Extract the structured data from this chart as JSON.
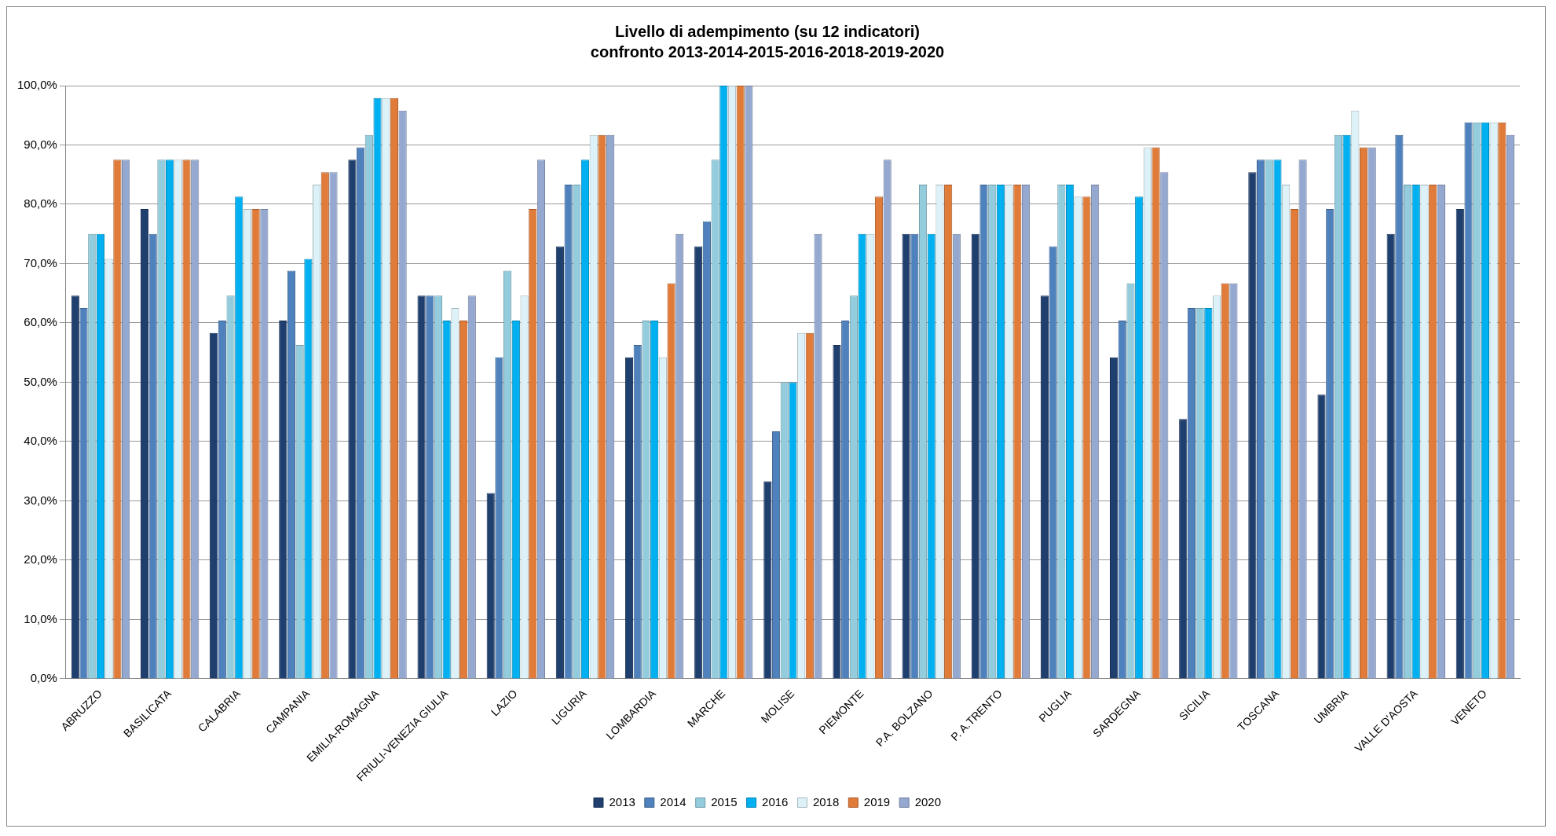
{
  "chart_data": {
    "type": "bar",
    "title": "Livello di adempimento (su 12 indicatori)",
    "subtitle": "confronto 2013-2014-2015-2016-2018-2019-2020",
    "categories": [
      "ABRUZZO",
      "BASILICATA",
      "CALABRIA",
      "CAMPANIA",
      "EMILIA-ROMAGNA",
      "FRIULI-VENEZIA GIULIA",
      "LAZIO",
      "LIGURIA",
      "LOMBARDIA",
      "MARCHE",
      "MOLISE",
      "PIEMONTE",
      "P.A. BOLZANO",
      "P. A.TRENTO",
      "PUGLIA",
      "SARDEGNA",
      "SICILIA",
      "TOSCANA",
      "UMBRIA",
      "VALLE D'AOSTA",
      "VENETO"
    ],
    "series": [
      {
        "name": "2013",
        "color": "#1f3f6e",
        "values": [
          64.6,
          79.2,
          58.3,
          60.4,
          87.5,
          64.6,
          31.3,
          72.9,
          54.2,
          72.9,
          33.3,
          56.3,
          75,
          75,
          64.6,
          54.2,
          43.8,
          85.4,
          47.9,
          75,
          79.2
        ]
      },
      {
        "name": "2014",
        "color": "#4f81bd",
        "values": [
          62.5,
          75,
          60.4,
          68.8,
          89.6,
          64.6,
          54.2,
          83.3,
          56.3,
          77.1,
          41.7,
          60.4,
          75,
          83.3,
          72.9,
          60.4,
          62.5,
          87.5,
          79.2,
          91.7,
          93.8
        ]
      },
      {
        "name": "2015",
        "color": "#93cddd",
        "values": [
          75,
          87.5,
          64.6,
          56.3,
          91.7,
          64.6,
          68.8,
          83.3,
          60.4,
          87.5,
          50,
          64.6,
          83.3,
          83.3,
          83.3,
          66.7,
          62.5,
          87.5,
          91.7,
          83.3,
          93.8
        ]
      },
      {
        "name": "2016",
        "color": "#00b0f0",
        "values": [
          75,
          87.5,
          81.3,
          70.8,
          97.9,
          60.4,
          60.4,
          87.5,
          60.4,
          100,
          50,
          75,
          75,
          83.3,
          83.3,
          81.3,
          62.5,
          87.5,
          91.7,
          83.3,
          93.8
        ]
      },
      {
        "name": "2018",
        "color": "#ddf2f8",
        "values": [
          70.8,
          87.5,
          79.2,
          83.3,
          97.9,
          62.5,
          64.6,
          91.7,
          54.2,
          100,
          58.3,
          75,
          83.3,
          83.3,
          81.3,
          89.6,
          64.6,
          83.3,
          95.8,
          83.3,
          93.8
        ]
      },
      {
        "name": "2019",
        "color": "#e07b39",
        "values": [
          87.5,
          87.5,
          79.2,
          85.4,
          97.9,
          60.4,
          79.2,
          91.7,
          66.7,
          100,
          58.3,
          81.3,
          83.3,
          83.3,
          81.3,
          89.6,
          66.7,
          79.2,
          89.6,
          83.3,
          93.8
        ]
      },
      {
        "name": "2020",
        "color": "#95a8d0",
        "values": [
          87.5,
          87.5,
          79.2,
          85.4,
          95.8,
          64.6,
          87.5,
          91.7,
          75,
          100,
          75,
          87.5,
          75,
          83.3,
          83.3,
          85.4,
          66.7,
          87.5,
          89.6,
          83.3,
          91.7
        ]
      }
    ],
    "ylim": [
      0,
      100
    ],
    "yticks": [
      {
        "value": 0,
        "label": "0,0%"
      },
      {
        "value": 10,
        "label": "10,0%"
      },
      {
        "value": 20,
        "label": "20,0%"
      },
      {
        "value": 30,
        "label": "30,0%"
      },
      {
        "value": 40,
        "label": "40,0%"
      },
      {
        "value": 50,
        "label": "50,0%"
      },
      {
        "value": 60,
        "label": "60,0%"
      },
      {
        "value": 70,
        "label": "70,0%"
      },
      {
        "value": 80,
        "label": "80,0%"
      },
      {
        "value": 90,
        "label": "90,0%"
      },
      {
        "value": 100,
        "label": "100,0%"
      }
    ],
    "grid": "y",
    "legend": "bottom"
  }
}
